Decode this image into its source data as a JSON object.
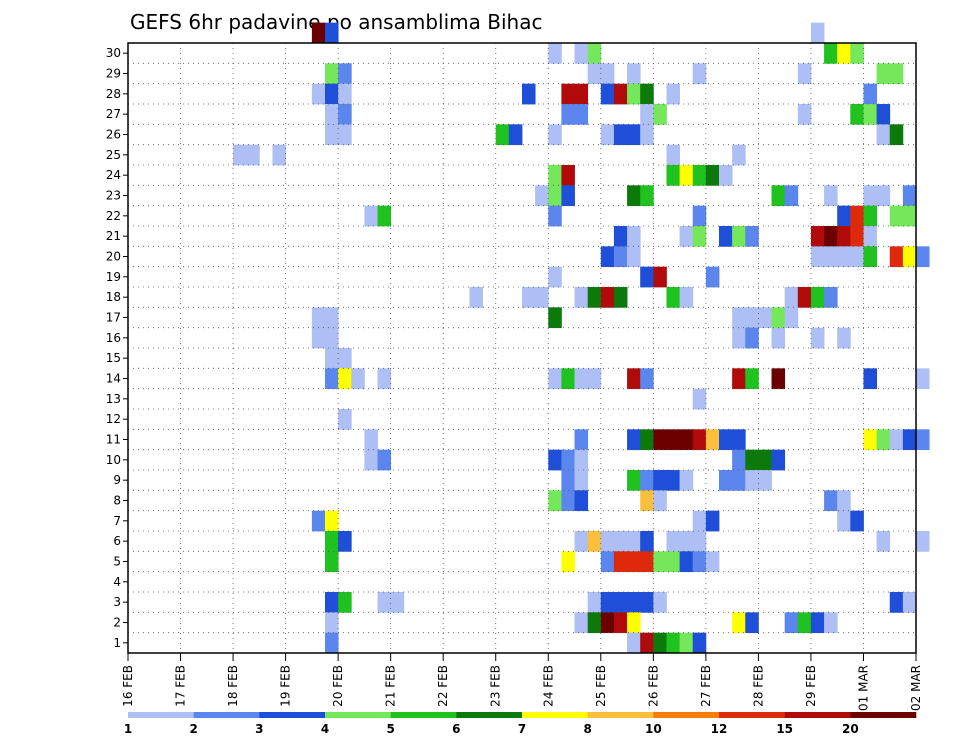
{
  "chart_data": {
    "type": "heatmap",
    "title": "GEFS 6hr padavine po ansamblima Bihac",
    "xlabel": "",
    "ylabel": "",
    "x_ticks": [
      "16 FEB",
      "17 FEB",
      "18 FEB",
      "19 FEB",
      "20 FEB",
      "21 FEB",
      "22 FEB",
      "23 FEB",
      "24 FEB",
      "25 FEB",
      "26 FEB",
      "27 FEB",
      "28 FEB",
      "29 FEB",
      "01 MAR",
      "02 MAR"
    ],
    "y_ticks": [
      1,
      2,
      3,
      4,
      5,
      6,
      7,
      8,
      9,
      10,
      11,
      12,
      13,
      14,
      15,
      16,
      17,
      18,
      19,
      20,
      21,
      22,
      23,
      24,
      25,
      26,
      27,
      28,
      29,
      30
    ],
    "x_range_steps": [
      0,
      60
    ],
    "y_range": [
      0,
      30
    ],
    "grid": true,
    "colorbar": {
      "levels": [
        "1",
        "2",
        "3",
        "4",
        "5",
        "6",
        "7",
        "8",
        "10",
        "12",
        "15",
        "20"
      ],
      "colors": [
        "#aebff5",
        "#5a86ee",
        "#1f4fd9",
        "#74e85a",
        "#1fc21f",
        "#0b7a0b",
        "#ffff00",
        "#fbbf3c",
        "#f57d0a",
        "#de2a0a",
        "#b10a0a",
        "#6b0000"
      ]
    },
    "cells": [
      [
        14,
        30,
        11
      ],
      [
        15,
        30,
        2
      ],
      [
        52,
        30,
        0
      ],
      [
        32,
        29,
        0
      ],
      [
        34,
        29,
        0
      ],
      [
        35,
        29,
        3
      ],
      [
        53,
        29,
        4
      ],
      [
        54,
        29,
        6
      ],
      [
        55,
        29,
        3
      ],
      [
        15,
        28,
        3
      ],
      [
        16,
        28,
        1
      ],
      [
        35,
        28,
        0
      ],
      [
        36,
        28,
        0
      ],
      [
        38,
        28,
        0
      ],
      [
        43,
        28,
        0
      ],
      [
        51,
        28,
        0
      ],
      [
        57,
        28,
        3
      ],
      [
        58,
        28,
        3
      ],
      [
        14,
        27,
        0
      ],
      [
        15,
        27,
        2
      ],
      [
        16,
        27,
        0
      ],
      [
        30,
        27,
        2
      ],
      [
        33,
        27,
        10
      ],
      [
        34,
        27,
        10
      ],
      [
        36,
        27,
        2
      ],
      [
        37,
        27,
        10
      ],
      [
        38,
        27,
        3
      ],
      [
        39,
        27,
        5
      ],
      [
        41,
        27,
        0
      ],
      [
        56,
        27,
        1
      ],
      [
        15,
        26,
        0
      ],
      [
        16,
        26,
        1
      ],
      [
        33,
        26,
        1
      ],
      [
        34,
        26,
        1
      ],
      [
        39,
        26,
        0
      ],
      [
        40,
        26,
        3
      ],
      [
        51,
        26,
        0
      ],
      [
        55,
        26,
        4
      ],
      [
        56,
        26,
        3
      ],
      [
        57,
        26,
        2
      ],
      [
        15,
        25,
        0
      ],
      [
        16,
        25,
        0
      ],
      [
        28,
        25,
        4
      ],
      [
        29,
        25,
        2
      ],
      [
        32,
        25,
        0
      ],
      [
        36,
        25,
        0
      ],
      [
        37,
        25,
        2
      ],
      [
        38,
        25,
        2
      ],
      [
        39,
        25,
        0
      ],
      [
        57,
        25,
        0
      ],
      [
        58,
        25,
        5
      ],
      [
        8,
        24,
        0
      ],
      [
        9,
        24,
        0
      ],
      [
        11,
        24,
        0
      ],
      [
        41,
        24,
        0
      ],
      [
        46,
        24,
        0
      ],
      [
        32,
        23,
        3
      ],
      [
        33,
        23,
        10
      ],
      [
        41,
        23,
        4
      ],
      [
        42,
        23,
        6
      ],
      [
        43,
        23,
        4
      ],
      [
        44,
        23,
        5
      ],
      [
        45,
        23,
        0
      ],
      [
        31,
        22,
        0
      ],
      [
        32,
        22,
        3
      ],
      [
        33,
        22,
        2
      ],
      [
        38,
        22,
        5
      ],
      [
        39,
        22,
        4
      ],
      [
        49,
        22,
        4
      ],
      [
        50,
        22,
        1
      ],
      [
        53,
        22,
        0
      ],
      [
        56,
        22,
        0
      ],
      [
        57,
        22,
        0
      ],
      [
        59,
        22,
        1
      ],
      [
        18,
        21,
        0
      ],
      [
        19,
        21,
        4
      ],
      [
        32,
        21,
        1
      ],
      [
        43,
        21,
        1
      ],
      [
        54,
        21,
        2
      ],
      [
        55,
        21,
        9
      ],
      [
        56,
        21,
        4
      ],
      [
        58,
        21,
        3
      ],
      [
        59,
        21,
        3
      ],
      [
        37,
        20,
        2
      ],
      [
        38,
        20,
        0
      ],
      [
        42,
        20,
        0
      ],
      [
        43,
        20,
        3
      ],
      [
        45,
        20,
        2
      ],
      [
        46,
        20,
        3
      ],
      [
        47,
        20,
        1
      ],
      [
        52,
        20,
        10
      ],
      [
        53,
        20,
        11
      ],
      [
        54,
        20,
        10
      ],
      [
        55,
        20,
        9
      ],
      [
        56,
        20,
        0
      ],
      [
        36,
        19,
        2
      ],
      [
        37,
        19,
        1
      ],
      [
        38,
        19,
        0
      ],
      [
        52,
        19,
        0
      ],
      [
        53,
        19,
        0
      ],
      [
        54,
        19,
        0
      ],
      [
        55,
        19,
        0
      ],
      [
        56,
        19,
        4
      ],
      [
        58,
        19,
        9
      ],
      [
        59,
        19,
        6
      ],
      [
        60,
        19,
        1
      ],
      [
        32,
        18,
        0
      ],
      [
        39,
        18,
        2
      ],
      [
        40,
        18,
        10
      ],
      [
        44,
        18,
        1
      ],
      [
        26,
        17,
        0
      ],
      [
        30,
        17,
        0
      ],
      [
        31,
        17,
        0
      ],
      [
        34,
        17,
        0
      ],
      [
        35,
        17,
        5
      ],
      [
        36,
        17,
        10
      ],
      [
        37,
        17,
        5
      ],
      [
        41,
        17,
        4
      ],
      [
        42,
        17,
        0
      ],
      [
        50,
        17,
        0
      ],
      [
        51,
        17,
        10
      ],
      [
        52,
        17,
        4
      ],
      [
        53,
        17,
        1
      ],
      [
        14,
        16,
        0
      ],
      [
        15,
        16,
        0
      ],
      [
        32,
        16,
        5
      ],
      [
        46,
        16,
        0
      ],
      [
        47,
        16,
        0
      ],
      [
        48,
        16,
        0
      ],
      [
        49,
        16,
        3
      ],
      [
        50,
        16,
        0
      ],
      [
        14,
        15,
        0
      ],
      [
        15,
        15,
        0
      ],
      [
        46,
        15,
        0
      ],
      [
        47,
        15,
        1
      ],
      [
        49,
        15,
        0
      ],
      [
        52,
        15,
        0
      ],
      [
        54,
        15,
        0
      ],
      [
        15,
        14,
        0
      ],
      [
        16,
        14,
        0
      ],
      [
        15,
        13,
        1
      ],
      [
        16,
        13,
        6
      ],
      [
        17,
        13,
        0
      ],
      [
        19,
        13,
        0
      ],
      [
        32,
        13,
        0
      ],
      [
        33,
        13,
        4
      ],
      [
        34,
        13,
        0
      ],
      [
        35,
        13,
        0
      ],
      [
        38,
        13,
        10
      ],
      [
        39,
        13,
        1
      ],
      [
        46,
        13,
        10
      ],
      [
        47,
        13,
        4
      ],
      [
        49,
        13,
        11
      ],
      [
        56,
        13,
        2
      ],
      [
        60,
        13,
        0
      ],
      [
        43,
        12,
        0
      ],
      [
        16,
        11,
        0
      ],
      [
        18,
        10,
        0
      ],
      [
        34,
        10,
        1
      ],
      [
        38,
        10,
        2
      ],
      [
        39,
        10,
        5
      ],
      [
        40,
        10,
        11
      ],
      [
        41,
        10,
        11
      ],
      [
        42,
        10,
        11
      ],
      [
        43,
        10,
        10
      ],
      [
        44,
        10,
        7
      ],
      [
        45,
        10,
        2
      ],
      [
        46,
        10,
        2
      ],
      [
        56,
        10,
        6
      ],
      [
        57,
        10,
        3
      ],
      [
        58,
        10,
        0
      ],
      [
        59,
        10,
        2
      ],
      [
        60,
        10,
        1
      ],
      [
        18,
        9,
        0
      ],
      [
        19,
        9,
        1
      ],
      [
        32,
        9,
        2
      ],
      [
        33,
        9,
        1
      ],
      [
        34,
        9,
        0
      ],
      [
        46,
        9,
        1
      ],
      [
        47,
        9,
        5
      ],
      [
        48,
        9,
        5
      ],
      [
        49,
        9,
        2
      ],
      [
        33,
        8,
        1
      ],
      [
        34,
        8,
        0
      ],
      [
        38,
        8,
        4
      ],
      [
        39,
        8,
        1
      ],
      [
        40,
        8,
        2
      ],
      [
        41,
        8,
        2
      ],
      [
        42,
        8,
        0
      ],
      [
        45,
        8,
        1
      ],
      [
        46,
        8,
        1
      ],
      [
        47,
        8,
        0
      ],
      [
        48,
        8,
        0
      ],
      [
        32,
        7,
        3
      ],
      [
        33,
        7,
        1
      ],
      [
        34,
        7,
        2
      ],
      [
        39,
        7,
        7
      ],
      [
        40,
        7,
        0
      ],
      [
        53,
        7,
        1
      ],
      [
        54,
        7,
        0
      ],
      [
        14,
        6,
        1
      ],
      [
        15,
        6,
        6
      ],
      [
        43,
        6,
        0
      ],
      [
        44,
        6,
        2
      ],
      [
        54,
        6,
        0
      ],
      [
        55,
        6,
        2
      ],
      [
        15,
        5,
        4
      ],
      [
        16,
        5,
        2
      ],
      [
        34,
        5,
        0
      ],
      [
        35,
        5,
        7
      ],
      [
        36,
        5,
        0
      ],
      [
        37,
        5,
        0
      ],
      [
        38,
        5,
        0
      ],
      [
        39,
        5,
        2
      ],
      [
        41,
        5,
        0
      ],
      [
        42,
        5,
        0
      ],
      [
        43,
        5,
        0
      ],
      [
        57,
        5,
        0
      ],
      [
        60,
        5,
        0
      ],
      [
        15,
        4,
        4
      ],
      [
        33,
        4,
        6
      ],
      [
        36,
        4,
        1
      ],
      [
        37,
        4,
        9
      ],
      [
        38,
        4,
        9
      ],
      [
        39,
        4,
        9
      ],
      [
        40,
        4,
        3
      ],
      [
        41,
        4,
        3
      ],
      [
        42,
        4,
        2
      ],
      [
        43,
        4,
        1
      ],
      [
        44,
        4,
        0
      ],
      [
        15,
        2,
        2
      ],
      [
        16,
        2,
        4
      ],
      [
        19,
        2,
        0
      ],
      [
        20,
        2,
        0
      ],
      [
        35,
        2,
        0
      ],
      [
        36,
        2,
        2
      ],
      [
        37,
        2,
        2
      ],
      [
        38,
        2,
        2
      ],
      [
        39,
        2,
        2
      ],
      [
        40,
        2,
        0
      ],
      [
        58,
        2,
        2
      ],
      [
        59,
        2,
        0
      ],
      [
        15,
        1,
        0
      ],
      [
        34,
        1,
        0
      ],
      [
        35,
        1,
        5
      ],
      [
        36,
        1,
        11
      ],
      [
        37,
        1,
        10
      ],
      [
        38,
        1,
        6
      ],
      [
        46,
        1,
        6
      ],
      [
        47,
        1,
        2
      ],
      [
        50,
        1,
        1
      ],
      [
        51,
        1,
        4
      ],
      [
        52,
        1,
        2
      ],
      [
        53,
        1,
        0
      ],
      [
        15,
        0,
        1
      ],
      [
        38,
        0,
        0
      ],
      [
        39,
        0,
        10
      ],
      [
        40,
        0,
        5
      ],
      [
        41,
        0,
        4
      ],
      [
        42,
        0,
        3
      ],
      [
        43,
        0,
        2
      ]
    ]
  }
}
